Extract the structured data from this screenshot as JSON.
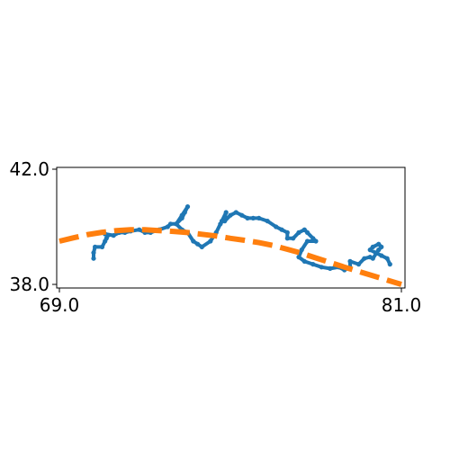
{
  "chart_data": {
    "type": "line",
    "title": "",
    "xlabel": "",
    "ylabel": "",
    "xlim": [
      69.0,
      81.0
    ],
    "ylim": [
      38.0,
      42.0
    ],
    "xticks": [
      69.0,
      81.0
    ],
    "yticks": [
      38.0,
      42.0
    ],
    "xtick_labels": [
      "69.0",
      "81.0"
    ],
    "ytick_labels": [
      "38.0",
      "42.0"
    ],
    "grid": false,
    "legend": "none",
    "series": [
      {
        "style": "solid-with-markers",
        "color": "#1f77b4",
        "x": [
          70.2,
          70.2,
          70.25,
          70.5,
          70.6,
          70.65,
          70.7,
          70.6,
          70.9,
          71.1,
          71.3,
          71.5,
          71.8,
          72.0,
          72.2,
          72.5,
          72.8,
          72.9,
          73.1,
          73.3,
          73.4,
          73.5,
          73.3,
          73.1,
          73.3,
          73.5,
          73.7,
          73.85,
          74.0,
          74.3,
          74.5,
          74.65,
          74.8,
          74.85,
          74.7,
          74.8,
          75.0,
          75.2,
          75.4,
          75.6,
          75.8,
          76.0,
          76.3,
          76.6,
          76.8,
          77.0,
          77.0,
          77.2,
          77.4,
          77.6,
          77.7,
          77.9,
          78.0,
          77.7,
          77.5,
          77.4,
          77.6,
          77.9,
          78.2,
          78.5,
          78.8,
          79.0,
          79.2,
          79.2,
          79.5,
          79.7,
          79.9,
          80.0,
          80.2,
          80.3,
          80.2,
          80.0,
          79.9,
          80.1,
          80.3,
          80.5,
          80.6
        ],
        "y": [
          38.9,
          39.1,
          39.3,
          39.3,
          39.5,
          39.6,
          39.7,
          39.75,
          39.7,
          39.8,
          39.8,
          39.85,
          39.9,
          39.8,
          39.8,
          39.9,
          40.0,
          40.1,
          40.1,
          40.3,
          40.5,
          40.7,
          40.4,
          40.1,
          39.9,
          39.8,
          39.5,
          39.4,
          39.3,
          39.5,
          39.8,
          40.1,
          40.3,
          40.5,
          40.2,
          40.2,
          40.4,
          40.5,
          40.4,
          40.3,
          40.3,
          40.3,
          40.2,
          40.0,
          39.9,
          39.8,
          39.6,
          39.6,
          39.8,
          39.9,
          39.8,
          39.6,
          39.5,
          39.5,
          39.2,
          38.95,
          38.8,
          38.7,
          38.6,
          38.55,
          38.6,
          38.5,
          38.6,
          38.8,
          38.7,
          38.9,
          38.95,
          38.9,
          39.2,
          39.3,
          39.4,
          39.3,
          39.2,
          39.1,
          39.0,
          38.9,
          38.7
        ]
      },
      {
        "style": "dashed",
        "color": "#ff7f0e",
        "x": [
          69.0,
          69.5,
          70.0,
          70.5,
          71.0,
          71.5,
          72.0,
          72.5,
          73.0,
          73.5,
          74.0,
          74.5,
          75.0,
          75.5,
          76.0,
          76.5,
          77.0,
          77.5,
          78.0,
          78.5,
          79.0,
          79.5,
          80.0,
          80.5,
          81.0
        ],
        "y": [
          39.5,
          39.62,
          39.73,
          39.81,
          39.87,
          39.9,
          39.9,
          39.87,
          39.84,
          39.8,
          39.74,
          39.68,
          39.6,
          39.53,
          39.45,
          39.35,
          39.22,
          39.08,
          38.92,
          38.76,
          38.6,
          38.45,
          38.3,
          38.15,
          38.0
        ]
      }
    ]
  }
}
